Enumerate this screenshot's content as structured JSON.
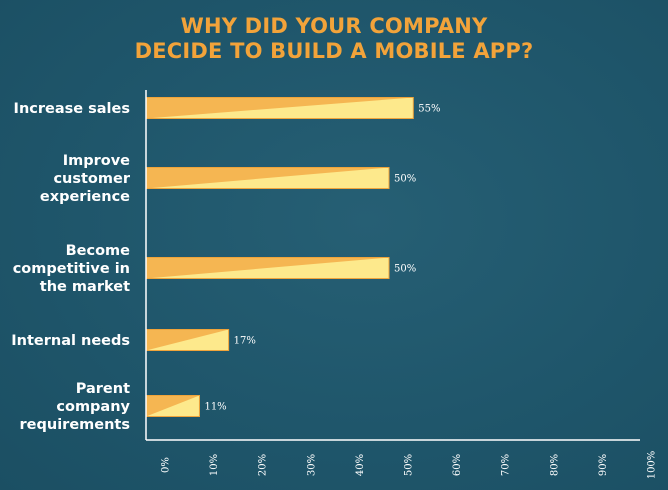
{
  "colors": {
    "background": "#1f566b",
    "title": "#f2a33a",
    "bar_light": "#fde98c",
    "bar_dark": "#f5b652",
    "bar_border": "#f0a43a",
    "axis": "#ffffff",
    "text": "#ffffff"
  },
  "chart_data": {
    "type": "bar",
    "orientation": "horizontal",
    "title_lines": [
      "WHY DID YOUR COMPANY",
      "DECIDE TO BUILD A MOBILE APP?"
    ],
    "categories": [
      [
        "Increase sales"
      ],
      [
        "Improve",
        "customer",
        "experience"
      ],
      [
        "Become",
        "competitive in",
        "the market"
      ],
      [
        "Internal needs"
      ],
      [
        "Parent",
        "company",
        "requirements"
      ]
    ],
    "values": [
      55,
      50,
      50,
      17,
      11
    ],
    "value_labels": [
      "55%",
      "50%",
      "50%",
      "17%",
      "11%"
    ],
    "xlim": [
      0,
      100
    ],
    "xticks": [
      "0%",
      "10%",
      "20%",
      "30%",
      "40%",
      "50%",
      "60%",
      "70%",
      "80%",
      "90%",
      "100%"
    ],
    "grid": false
  }
}
